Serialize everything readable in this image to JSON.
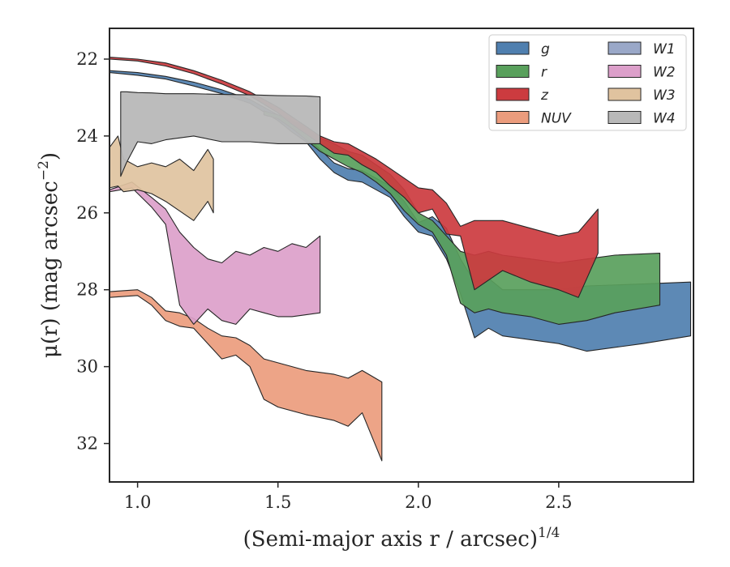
{
  "chart_data": {
    "type": "area",
    "xlabel": "(Semi-major axis r / arcsec)",
    "xlabel_sup": "1/4",
    "ylabel": "μ(r) (mag arcsec",
    "ylabel_sup": "−2",
    "ylabel_end": ")",
    "xlim": [
      0.9,
      2.98
    ],
    "ylim": [
      33.0,
      21.2
    ],
    "y_inverted": true,
    "xticks": [
      {
        "value": 1.0,
        "label": "1.0"
      },
      {
        "value": 1.5,
        "label": "1.5"
      },
      {
        "value": 2.0,
        "label": "2.0"
      },
      {
        "value": 2.5,
        "label": "2.5"
      }
    ],
    "yticks": [
      {
        "value": 22,
        "label": "22"
      },
      {
        "value": 24,
        "label": "24"
      },
      {
        "value": 26,
        "label": "26"
      },
      {
        "value": 28,
        "label": "28"
      },
      {
        "value": 30,
        "label": "30"
      },
      {
        "value": 32,
        "label": "32"
      }
    ],
    "grid": false,
    "legend_position": "top-right",
    "legend_columns": 2,
    "series": [
      {
        "name": "g",
        "color": "#4f7faf",
        "x": [
          0.9,
          1.0,
          1.1,
          1.2,
          1.3,
          1.4,
          1.5,
          1.55,
          1.6,
          1.65,
          1.7,
          1.75,
          1.8,
          1.85,
          1.9,
          1.95,
          2.0,
          2.05,
          2.1,
          2.15,
          2.2,
          2.25,
          2.3,
          2.4,
          2.5,
          2.6,
          2.8,
          2.97
        ],
        "y1": [
          22.3,
          22.35,
          22.45,
          22.6,
          22.8,
          23.05,
          23.45,
          23.75,
          24.0,
          24.35,
          24.7,
          24.85,
          24.9,
          25.1,
          25.3,
          25.7,
          26.25,
          26.1,
          26.4,
          27.2,
          27.8,
          27.7,
          28.0,
          28.0,
          28.0,
          27.9,
          27.85,
          27.8
        ],
        "y2": [
          22.35,
          22.42,
          22.52,
          22.7,
          22.9,
          23.15,
          23.6,
          23.9,
          24.15,
          24.6,
          24.95,
          25.15,
          25.2,
          25.4,
          25.6,
          26.1,
          26.5,
          26.6,
          27.2,
          28.1,
          29.25,
          29.0,
          29.2,
          29.3,
          29.4,
          29.6,
          29.4,
          29.2
        ]
      },
      {
        "name": "r",
        "color": "#59a05c",
        "x": [
          1.45,
          1.5,
          1.55,
          1.6,
          1.65,
          1.7,
          1.75,
          1.8,
          1.85,
          1.9,
          1.95,
          2.0,
          2.05,
          2.1,
          2.15,
          2.2,
          2.25,
          2.3,
          2.4,
          2.5,
          2.6,
          2.7,
          2.86
        ],
        "y1": [
          23.35,
          23.45,
          23.6,
          23.75,
          24.05,
          24.2,
          24.4,
          24.5,
          24.75,
          25.0,
          25.4,
          26.0,
          26.2,
          26.6,
          27.0,
          27.1,
          27.0,
          27.1,
          27.2,
          27.3,
          27.2,
          27.1,
          27.05
        ],
        "y2": [
          23.45,
          23.55,
          23.8,
          24.1,
          24.4,
          24.6,
          24.8,
          24.95,
          25.2,
          25.5,
          25.95,
          26.3,
          26.5,
          27.1,
          28.35,
          28.6,
          28.5,
          28.6,
          28.7,
          28.9,
          28.8,
          28.6,
          28.4
        ]
      },
      {
        "name": "z",
        "color": "#cc3b3f",
        "x": [
          0.9,
          1.0,
          1.1,
          1.2,
          1.3,
          1.4,
          1.5,
          1.55,
          1.6,
          1.65,
          1.7,
          1.75,
          1.8,
          1.85,
          1.9,
          1.95,
          2.0,
          2.05,
          2.1,
          2.15,
          2.2,
          2.3,
          2.4,
          2.5,
          2.57,
          2.64
        ],
        "y1": [
          21.95,
          22.0,
          22.1,
          22.3,
          22.55,
          22.85,
          23.25,
          23.5,
          23.75,
          24.0,
          24.15,
          24.2,
          24.4,
          24.6,
          24.85,
          25.1,
          25.35,
          25.4,
          25.75,
          26.35,
          26.2,
          26.2,
          26.4,
          26.6,
          26.5,
          25.9
        ],
        "y2": [
          22.0,
          22.05,
          22.18,
          22.38,
          22.65,
          22.95,
          23.4,
          23.7,
          23.95,
          24.2,
          24.45,
          24.5,
          24.75,
          24.95,
          25.3,
          25.6,
          26.0,
          25.9,
          26.55,
          26.6,
          28.0,
          27.5,
          27.8,
          28.0,
          28.2,
          27.05
        ]
      },
      {
        "name": "NUV",
        "color": "#eb9c7d",
        "x": [
          0.9,
          1.0,
          1.05,
          1.1,
          1.15,
          1.2,
          1.25,
          1.3,
          1.35,
          1.4,
          1.45,
          1.5,
          1.6,
          1.7,
          1.75,
          1.8,
          1.87
        ],
        "y1": [
          28.05,
          28.0,
          28.2,
          28.55,
          28.6,
          28.75,
          29.0,
          29.2,
          29.25,
          29.45,
          29.8,
          29.9,
          30.1,
          30.2,
          30.3,
          30.1,
          30.4
        ],
        "y2": [
          28.2,
          28.15,
          28.4,
          28.8,
          28.95,
          29.0,
          29.4,
          29.8,
          29.7,
          30.0,
          30.85,
          31.05,
          31.25,
          31.4,
          31.55,
          31.2,
          32.45
        ]
      },
      {
        "name": "W1",
        "color": "#9aa8c8",
        "x": [
          0.9,
          0.95
        ],
        "y1": [
          22.0,
          22.0
        ],
        "y2": [
          22.0,
          22.0
        ]
      },
      {
        "name": "W2",
        "color": "#dc9fca",
        "x": [
          0.9,
          0.98,
          1.05,
          1.1,
          1.15,
          1.2,
          1.25,
          1.3,
          1.35,
          1.4,
          1.45,
          1.5,
          1.55,
          1.6,
          1.65
        ],
        "y1": [
          25.4,
          25.2,
          25.6,
          25.9,
          26.5,
          26.9,
          27.2,
          27.3,
          27.0,
          27.1,
          26.9,
          27.0,
          26.8,
          26.9,
          26.6
        ],
        "y2": [
          25.45,
          25.35,
          25.85,
          26.3,
          28.4,
          28.9,
          28.5,
          28.8,
          28.9,
          28.5,
          28.6,
          28.7,
          28.7,
          28.65,
          28.6
        ]
      },
      {
        "name": "W3",
        "color": "#e0c39f",
        "x": [
          0.9,
          0.93,
          0.95,
          1.0,
          1.05,
          1.1,
          1.15,
          1.2,
          1.25,
          1.27
        ],
        "y1": [
          24.3,
          24.0,
          24.6,
          24.8,
          24.7,
          24.8,
          24.6,
          24.9,
          24.35,
          24.6
        ],
        "y2": [
          25.35,
          25.3,
          25.45,
          25.4,
          25.5,
          25.7,
          25.95,
          26.2,
          25.7,
          26.0
        ]
      },
      {
        "name": "W4",
        "color": "#b8b8b8",
        "x": [
          0.94,
          0.96,
          1.0,
          1.05,
          1.1,
          1.2,
          1.3,
          1.4,
          1.5,
          1.6,
          1.65
        ],
        "y1": [
          22.85,
          22.85,
          22.87,
          22.88,
          22.9,
          22.9,
          22.92,
          22.93,
          22.95,
          22.96,
          22.98
        ],
        "y2": [
          25.05,
          24.7,
          24.15,
          24.2,
          24.1,
          24.0,
          24.15,
          24.15,
          24.2,
          24.2,
          24.2
        ]
      }
    ]
  }
}
